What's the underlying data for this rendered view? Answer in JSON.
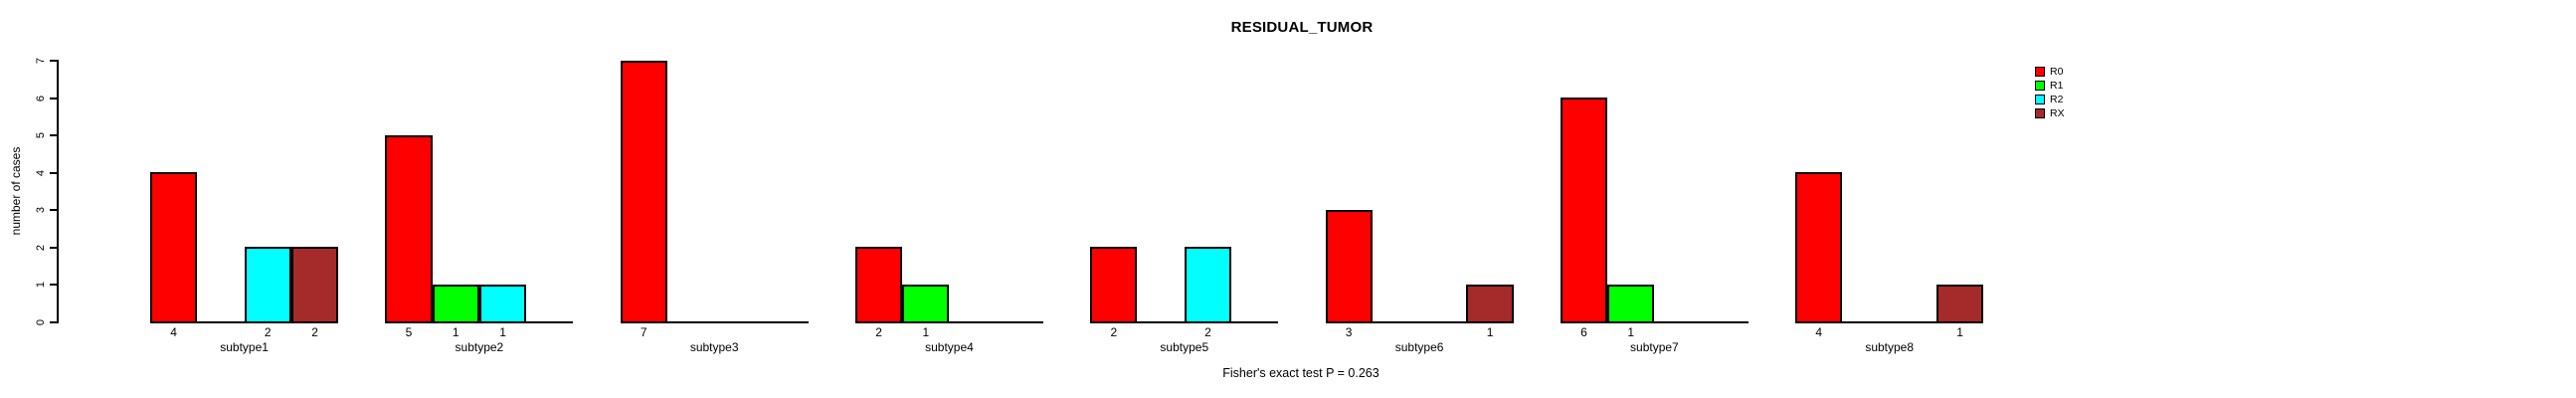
{
  "chart_data": {
    "type": "bar",
    "title": "RESIDUAL_TUMOR",
    "ylabel": "number of cases",
    "footer": "Fisher's exact test P = 0.263",
    "categories": [
      "subtype1",
      "subtype2",
      "subtype3",
      "subtype4",
      "subtype5",
      "subtype6",
      "subtype7",
      "subtype8"
    ],
    "series": [
      {
        "name": "R0",
        "color": "#FF0000",
        "values": [
          4,
          5,
          7,
          2,
          2,
          3,
          6,
          4
        ]
      },
      {
        "name": "R1",
        "color": "#00FF00",
        "values": [
          0,
          1,
          0,
          1,
          0,
          0,
          1,
          0
        ]
      },
      {
        "name": "R2",
        "color": "#00FFFF",
        "values": [
          2,
          1,
          0,
          0,
          2,
          0,
          0,
          0
        ]
      },
      {
        "name": "RX",
        "color": "#A52A2A",
        "values": [
          2,
          0,
          0,
          0,
          0,
          1,
          0,
          1
        ]
      }
    ],
    "ylim": [
      0,
      7
    ],
    "yticks": [
      0,
      1,
      2,
      3,
      4,
      5,
      6,
      7
    ],
    "grid": false,
    "legend_position": "right",
    "value_labels": "shown under each nonzero bar",
    "background": "#FFFFFF",
    "text_color": "#000000"
  }
}
